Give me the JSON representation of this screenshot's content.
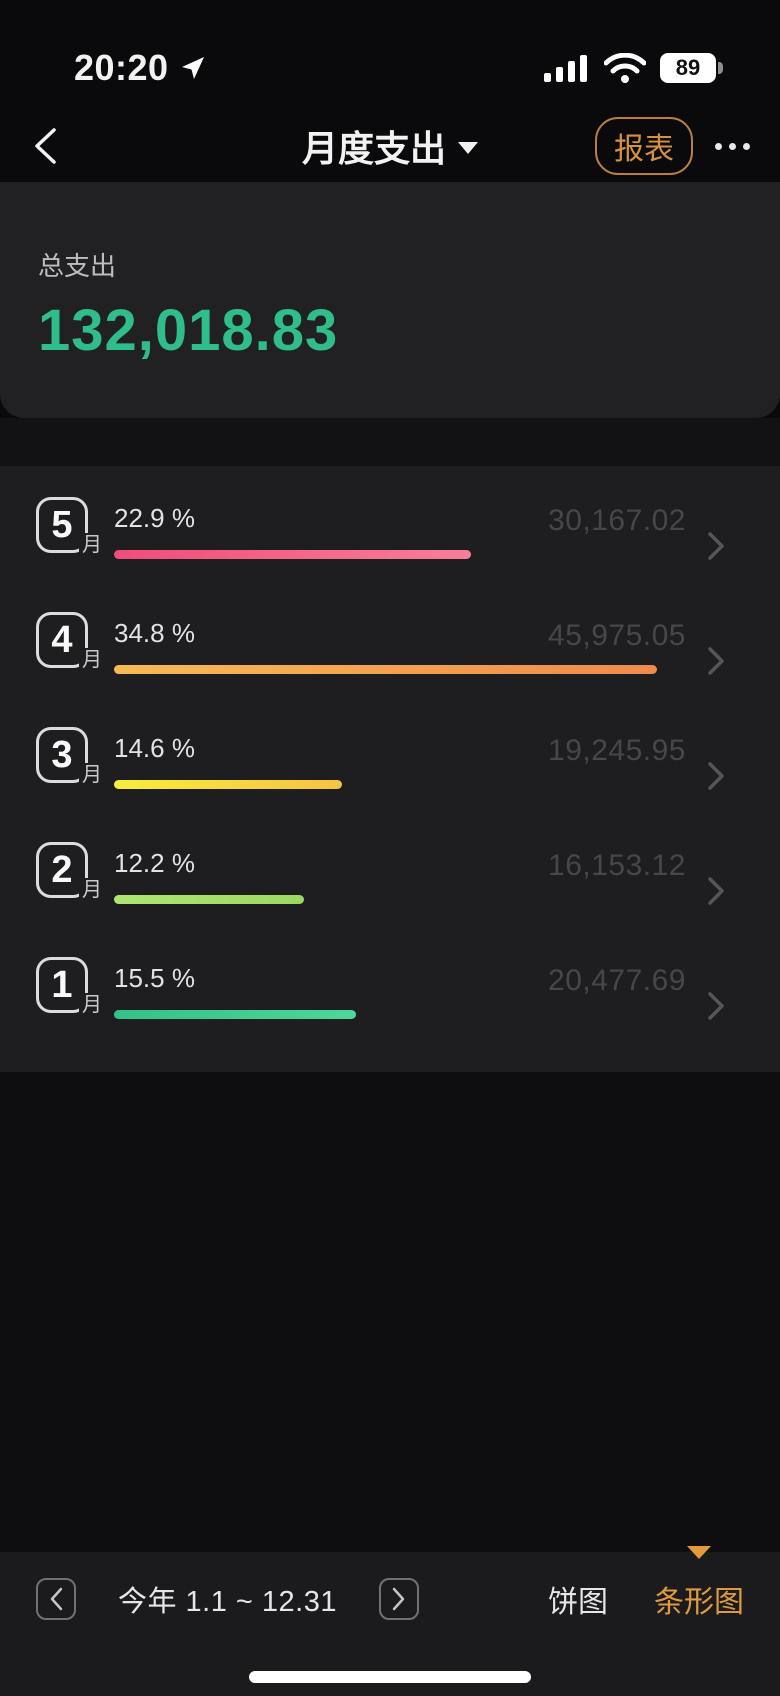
{
  "status_bar": {
    "time": "20:20",
    "battery": "89"
  },
  "nav": {
    "title": "月度支出",
    "report_label": "报表"
  },
  "summary": {
    "label": "总支出",
    "total": "132,018.83"
  },
  "colors": {
    "accent_orange": "#d6913f",
    "total_green": "#2fbd8a",
    "list_background": "#1e1e20",
    "card_background": "#212124",
    "bottom_bar_background": "#1b1b1d"
  },
  "months": [
    {
      "month": "5",
      "unit": "月",
      "percent_label": "22.9 %",
      "percent": 22.9,
      "amount": "30,167.02",
      "bar_from": "#ef4d79",
      "bar_to": "#f87e99"
    },
    {
      "month": "4",
      "unit": "月",
      "percent_label": "34.8 %",
      "percent": 34.8,
      "amount": "45,975.05",
      "bar_from": "#f7ba55",
      "bar_to": "#ef8a4d"
    },
    {
      "month": "3",
      "unit": "月",
      "percent_label": "14.6 %",
      "percent": 14.6,
      "amount": "19,245.95",
      "bar_from": "#f8ee3d",
      "bar_to": "#f5c243"
    },
    {
      "month": "2",
      "unit": "月",
      "percent_label": "12.2 %",
      "percent": 12.2,
      "amount": "16,153.12",
      "bar_from": "#b0e573",
      "bar_to": "#9ad95f"
    },
    {
      "month": "1",
      "unit": "月",
      "percent_label": "15.5 %",
      "percent": 15.5,
      "amount": "20,477.69",
      "bar_from": "#33c287",
      "bar_to": "#4ed69a"
    }
  ],
  "footer": {
    "period": "今年 1.1 ~ 12.31",
    "tabs": [
      {
        "label": "饼图",
        "active": false
      },
      {
        "label": "条形图",
        "active": true
      }
    ]
  },
  "icons": [
    "location-arrow-icon",
    "signal-icon",
    "wifi-icon",
    "battery-icon",
    "back-icon",
    "caret-down-icon",
    "more-icon",
    "chevron-right-icon",
    "prev-icon",
    "next-icon",
    "active-tab-triangle-icon",
    "home-indicator"
  ]
}
